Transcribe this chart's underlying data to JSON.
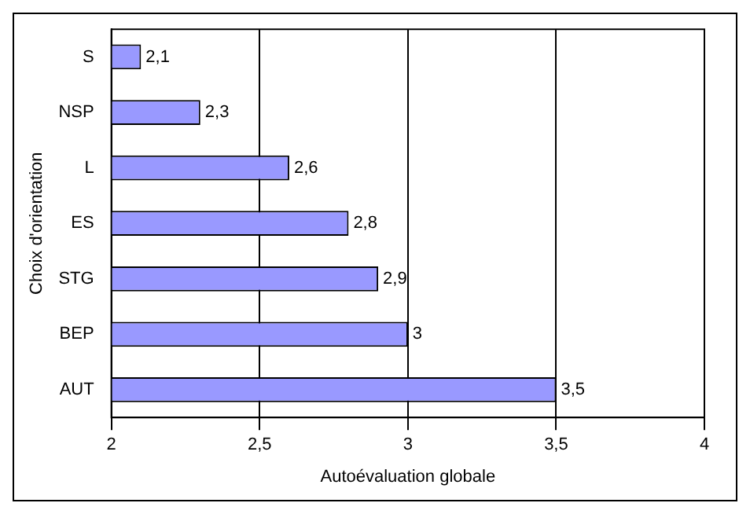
{
  "chart_data": {
    "type": "bar",
    "orientation": "horizontal",
    "xlabel": "Autoévaluation globale",
    "ylabel": "Choix d'orientation",
    "categories": [
      "S",
      "NSP",
      "L",
      "ES",
      "STG",
      "BEP",
      "AUT"
    ],
    "values": [
      2.1,
      2.3,
      2.6,
      2.8,
      2.9,
      3,
      3.5
    ],
    "value_labels": [
      "2,1",
      "2,3",
      "2,6",
      "2,8",
      "2,9",
      "3",
      "3,5"
    ],
    "color": "#9999ff",
    "xlim": [
      2,
      4
    ],
    "xticks": [
      2,
      {
        "value": 2.5,
        "label": "2,5"
      },
      3,
      {
        "value": 3.5,
        "label": "3,5"
      },
      4
    ],
    "grid": "x",
    "legend": false
  }
}
